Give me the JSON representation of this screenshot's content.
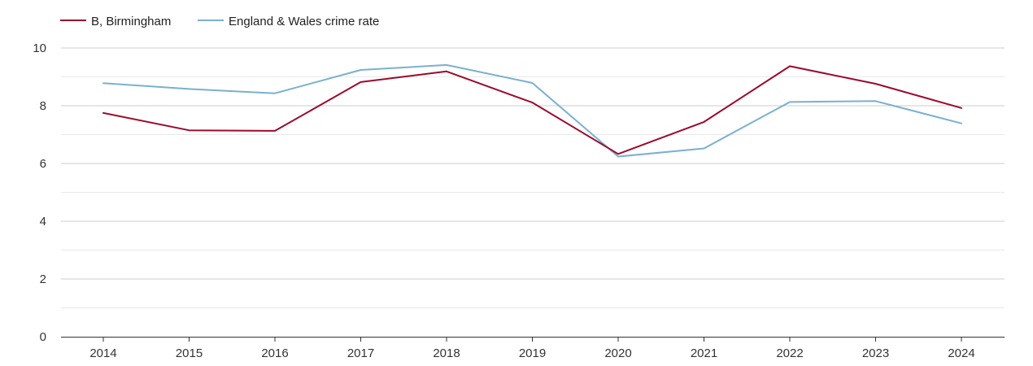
{
  "chart_data": {
    "type": "line",
    "title": "",
    "xlabel": "",
    "ylabel": "",
    "x": [
      "2014",
      "2015",
      "2016",
      "2017",
      "2018",
      "2019",
      "2020",
      "2021",
      "2022",
      "2023",
      "2024"
    ],
    "ylim": [
      0,
      10
    ],
    "yticks": [
      "0",
      "2",
      "4",
      "6",
      "8",
      "10"
    ],
    "grid": true,
    "legend_position": "top-left",
    "series": [
      {
        "name": "B, Birmingham",
        "color": "#9b0a2c",
        "values": [
          7.75,
          7.15,
          7.13,
          8.82,
          9.19,
          8.11,
          6.33,
          7.44,
          9.37,
          8.76,
          7.92
        ]
      },
      {
        "name": "England & Wales crime rate",
        "color": "#7ab0d0",
        "values": [
          8.78,
          8.58,
          8.43,
          9.24,
          9.41,
          8.79,
          6.24,
          6.52,
          8.13,
          8.16,
          7.39
        ]
      }
    ]
  }
}
